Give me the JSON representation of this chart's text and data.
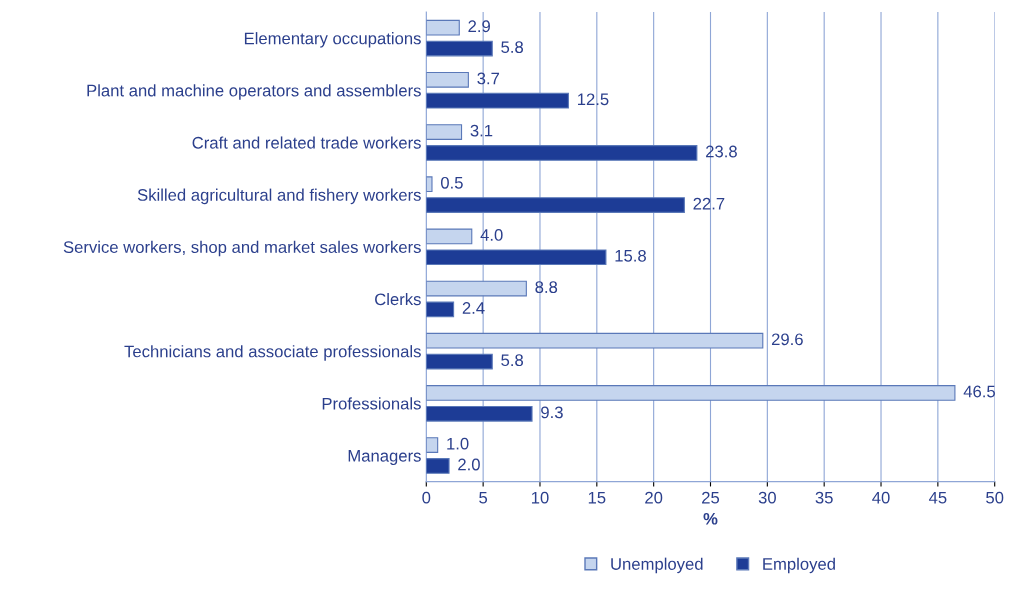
{
  "chart_data": {
    "type": "bar",
    "orientation": "horizontal",
    "xlabel": "%",
    "categories": [
      "Elementary occupations",
      "Plant and machine operators and assemblers",
      "Craft and related trade workers",
      "Skilled agricultural and fishery workers",
      "Service workers, shop and market sales workers",
      "Clerks",
      "Technicians and associate professionals",
      "Professionals",
      "Managers"
    ],
    "series": [
      {
        "name": "Unemployed",
        "color": "#c5d5ee",
        "values": [
          2.9,
          3.7,
          3.1,
          0.5,
          4.0,
          8.8,
          29.6,
          46.5,
          1.0
        ],
        "value_labels": [
          "2.9",
          "3.7",
          "3.1",
          "0.5",
          "4.0",
          "8.8",
          "29.6",
          "46.5",
          "1.0"
        ]
      },
      {
        "name": "Employed",
        "color": "#1d3c96",
        "values": [
          5.8,
          12.5,
          23.8,
          22.7,
          15.8,
          2.4,
          5.8,
          9.3,
          2.0
        ],
        "value_labels": [
          "5.8",
          "12.5",
          "23.8",
          "22.7",
          "15.8",
          "2.4",
          "5.8",
          "9.3",
          "2.0"
        ]
      }
    ],
    "xlim": [
      0,
      50
    ],
    "xticks": [
      0,
      5,
      10,
      15,
      20,
      25,
      30,
      35,
      40,
      45,
      50
    ],
    "grid": "x",
    "legend": "bottom"
  }
}
